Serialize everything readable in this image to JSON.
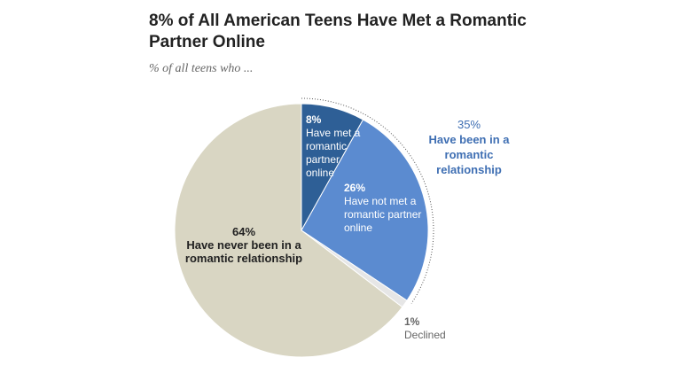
{
  "chart_data": {
    "type": "pie",
    "title": "8% of All American Teens Have Met a Romantic Partner Online",
    "subtitle": "% of all teens who ...",
    "categories": [
      "Have met a romantic partner online",
      "Have not met a romantic partner online",
      "Declined",
      "Have never been in a romantic relationship"
    ],
    "values": [
      8,
      26,
      1,
      64
    ],
    "value_labels": [
      "8%",
      "26%",
      "1%",
      "64%"
    ],
    "colors": [
      "#2e5f96",
      "#5b8bd0",
      "#e6e6e6",
      "#d9d6c3"
    ],
    "annotations": [
      {
        "label": "35%",
        "text": "Have been in a romantic relationship"
      }
    ]
  }
}
